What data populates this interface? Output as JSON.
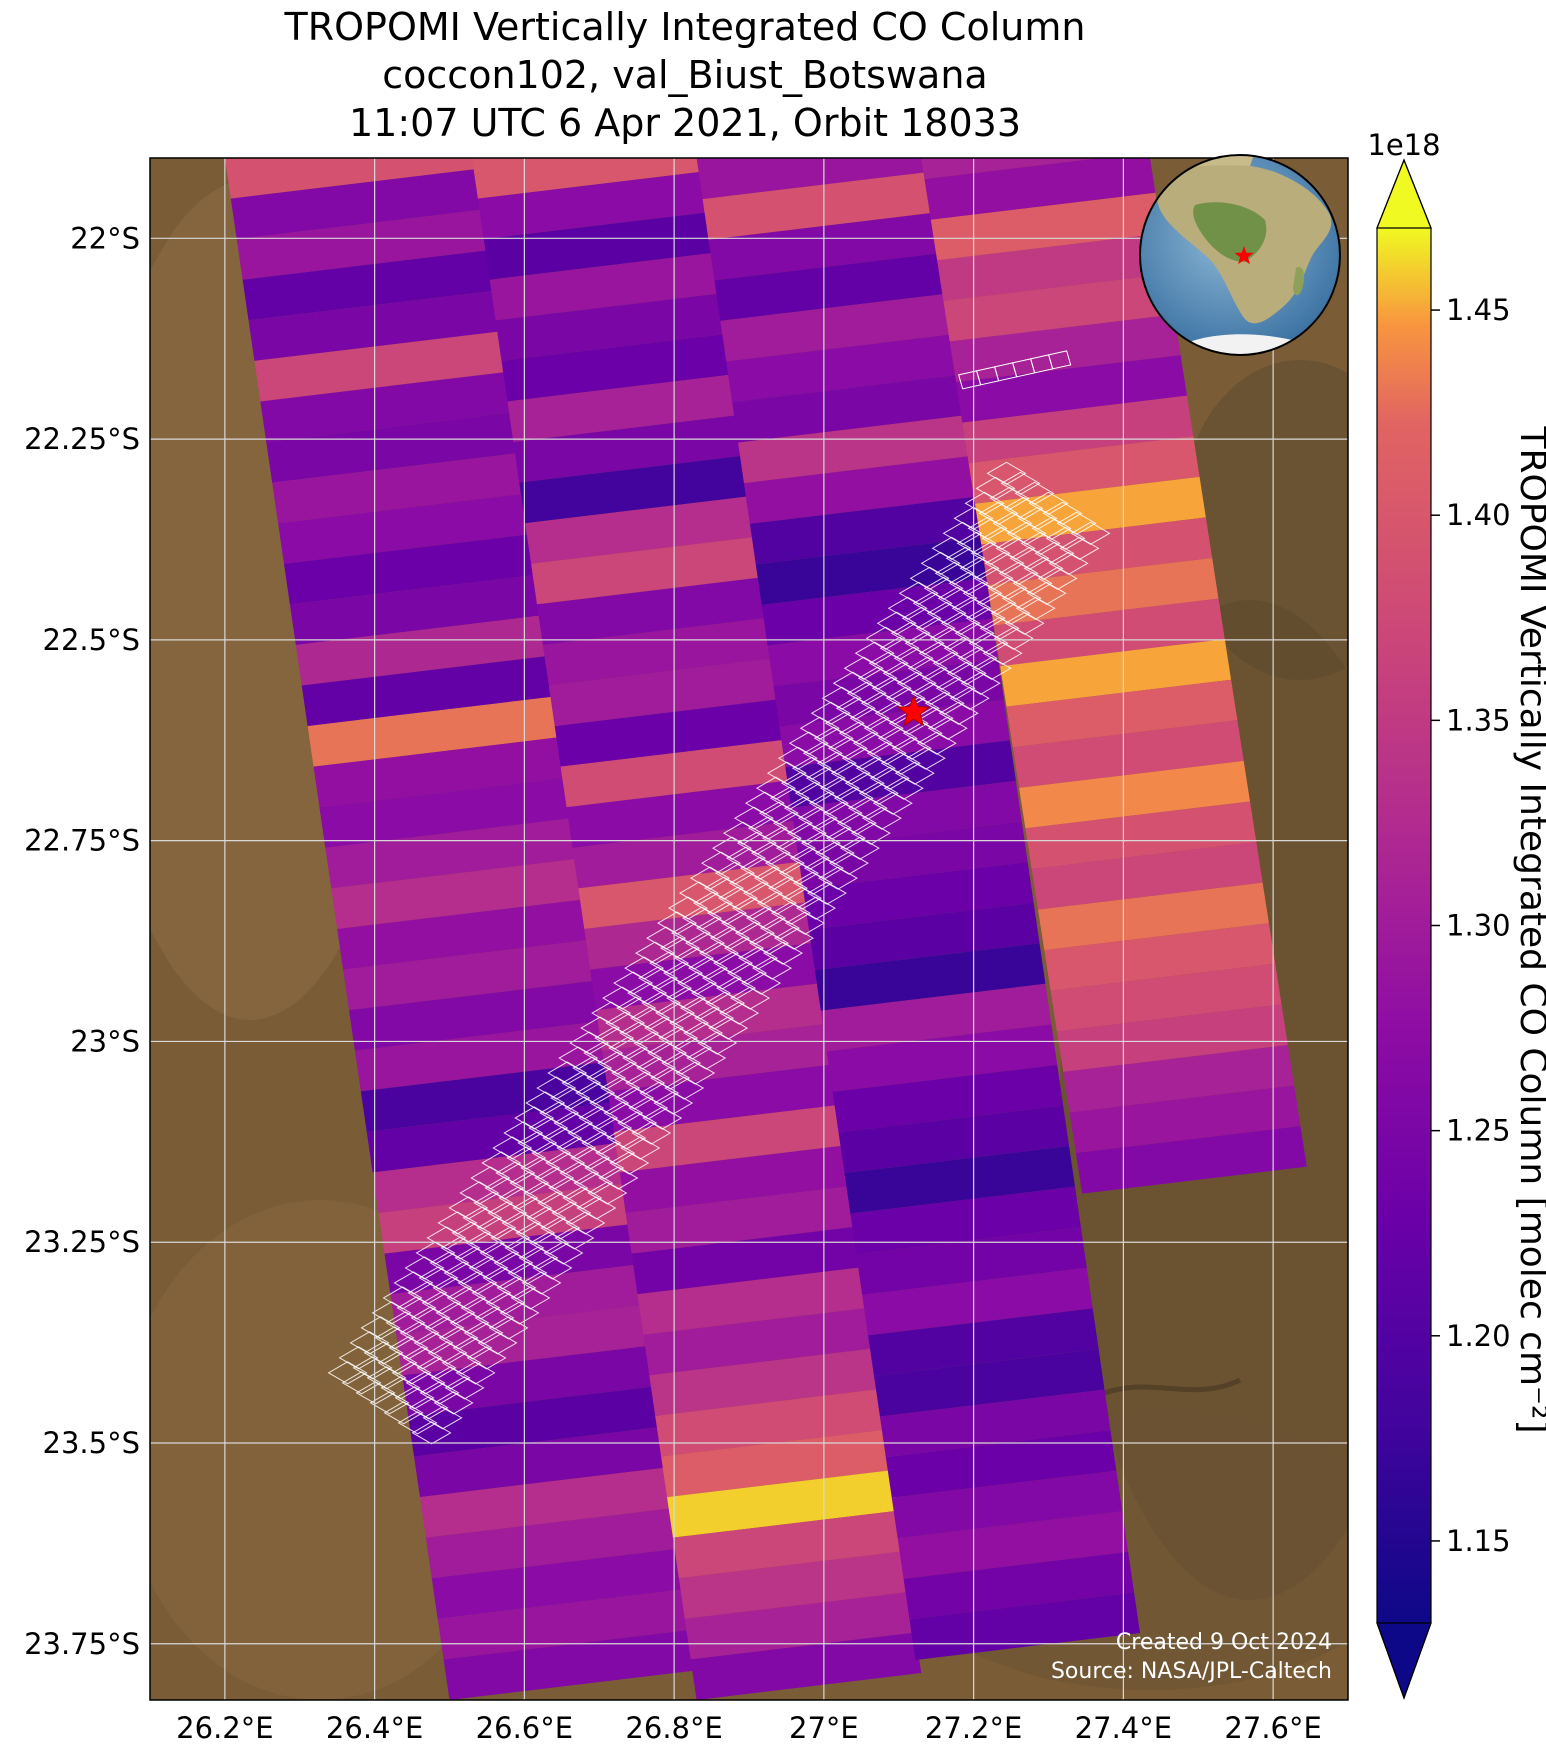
{
  "title": {
    "line1": "TROPOMI Vertically Integrated CO Column",
    "line2": "coccon102, val_Biust_Botswana",
    "line3": "11:07 UTC 6 Apr 2021, Orbit 18033"
  },
  "map": {
    "lon_range": [
      26.1,
      27.7
    ],
    "lat_range": [
      -23.82,
      -21.9
    ],
    "x_ticks": [
      {
        "value": 26.2,
        "label": "26.2°E"
      },
      {
        "value": 26.4,
        "label": "26.4°E"
      },
      {
        "value": 26.6,
        "label": "26.6°E"
      },
      {
        "value": 26.8,
        "label": "26.8°E"
      },
      {
        "value": 27.0,
        "label": "27°E"
      },
      {
        "value": 27.2,
        "label": "27.2°E"
      },
      {
        "value": 27.4,
        "label": "27.4°E"
      },
      {
        "value": 27.6,
        "label": "27.6°E"
      }
    ],
    "y_ticks": [
      {
        "value": -22.0,
        "label": "22°S"
      },
      {
        "value": -22.25,
        "label": "22.25°S"
      },
      {
        "value": -22.5,
        "label": "22.5°S"
      },
      {
        "value": -22.75,
        "label": "22.75°S"
      },
      {
        "value": -23.0,
        "label": "23°S"
      },
      {
        "value": -23.25,
        "label": "23.25°S"
      },
      {
        "value": -23.5,
        "label": "23.5°S"
      },
      {
        "value": -23.75,
        "label": "23.75°S"
      }
    ],
    "grid": true,
    "basemap": "satellite imagery",
    "site_marker": {
      "lon": 27.12,
      "lat": -22.59,
      "symbol": "star-icon",
      "color": "#ff0000"
    },
    "overlay_color": "#ffffff"
  },
  "colorbar": {
    "label": "TROPOMI Vertically Integrated CO Column [molec cm⁻²]",
    "exponent": "1e18",
    "min": 1.13,
    "max": 1.47,
    "colormap": "plasma",
    "ticks": [
      {
        "value": 1.15,
        "label": "1.15"
      },
      {
        "value": 1.2,
        "label": "1.20"
      },
      {
        "value": 1.25,
        "label": "1.25"
      },
      {
        "value": 1.3,
        "label": "1.30"
      },
      {
        "value": 1.35,
        "label": "1.35"
      },
      {
        "value": 1.4,
        "label": "1.40"
      },
      {
        "value": 1.45,
        "label": "1.45"
      }
    ],
    "extend": "both"
  },
  "inset_globe": {
    "region": "Africa",
    "marker": "star-icon",
    "marker_color": "#ff0000"
  },
  "credits": {
    "created": "Created 9 Oct 2024",
    "source": "Source: NASA/JPL-Caltech"
  },
  "chart_data": {
    "type": "heatmap",
    "title": "TROPOMI Vertically Integrated CO Column",
    "subtitle": "coccon102, val_Biust_Botswana — 11:07 UTC 6 Apr 2021, Orbit 18033",
    "xlabel": "",
    "ylabel": "",
    "xlim": [
      26.1,
      27.7
    ],
    "ylim": [
      -23.82,
      -21.9
    ],
    "value_unit": "1e18 molec cm-2",
    "columns": [
      {
        "name": "swath-col-1",
        "lon_nw": 26.2,
        "lon_ne": 26.53,
        "lon_sw": 26.5,
        "lon_se": 26.83,
        "values": [
          1.39,
          1.26,
          1.29,
          1.22,
          1.25,
          1.37,
          1.26,
          1.25,
          1.29,
          1.27,
          1.23,
          1.25,
          1.32,
          1.22,
          1.43,
          1.28,
          1.27,
          1.3,
          1.33,
          1.28,
          1.3,
          1.26,
          1.29,
          1.19,
          1.22,
          1.33,
          1.36,
          1.25,
          1.3,
          1.31,
          1.25,
          1.21,
          1.25,
          1.33,
          1.3,
          1.27,
          1.29,
          1.26
        ]
      },
      {
        "name": "swath-col-2",
        "lon_nw": 26.53,
        "lon_ne": 26.83,
        "lon_sw": 26.83,
        "lon_se": 27.13,
        "values": [
          1.4,
          1.27,
          1.21,
          1.29,
          1.25,
          1.23,
          1.31,
          1.25,
          1.18,
          1.33,
          1.37,
          1.26,
          1.29,
          1.3,
          1.23,
          1.38,
          1.27,
          1.3,
          1.4,
          1.32,
          1.27,
          1.33,
          1.31,
          1.27,
          1.37,
          1.28,
          1.3,
          1.24,
          1.33,
          1.3,
          1.34,
          1.38,
          1.41,
          1.46,
          1.37,
          1.34,
          1.31,
          1.26
        ]
      },
      {
        "name": "swath-col-3",
        "lon_nw": 26.83,
        "lon_ne": 27.13,
        "lon_sw": 27.13,
        "lon_se": 27.43,
        "values": [
          1.23,
          1.29,
          1.39,
          1.26,
          1.22,
          1.3,
          1.27,
          1.25,
          1.34,
          1.28,
          1.2,
          1.17,
          1.23,
          1.27,
          1.25,
          1.27,
          1.2,
          1.26,
          1.25,
          1.23,
          1.21,
          1.17,
          1.3,
          1.27,
          1.23,
          1.21,
          1.17,
          1.23,
          1.24,
          1.27,
          1.2,
          1.19,
          1.25,
          1.23,
          1.26,
          1.28,
          1.24,
          1.22
        ]
      },
      {
        "name": "swath-col-4",
        "lon_nw": 27.13,
        "lon_ne": 27.43,
        "lon_sw": 27.45,
        "lon_se": 27.75,
        "values": [
          1.46,
          1.31,
          1.28,
          1.41,
          1.35,
          1.37,
          1.31,
          1.27,
          1.36,
          1.4,
          1.45,
          1.39,
          1.43,
          1.38,
          1.45,
          1.41,
          1.38,
          1.44,
          1.39,
          1.37,
          1.43,
          1.4,
          1.38,
          1.36,
          1.31,
          1.29,
          1.26
        ]
      }
    ],
    "site": {
      "name": "val_Biust_Botswana",
      "lon": 27.12,
      "lat": -22.59
    }
  }
}
